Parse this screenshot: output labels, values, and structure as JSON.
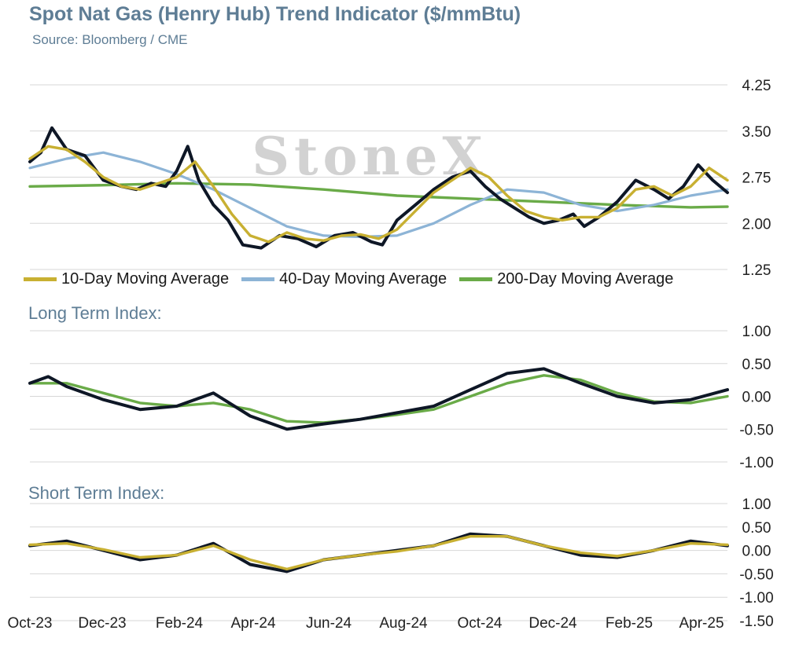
{
  "header": {
    "title": "Spot Nat Gas (Henry Hub) Trend Indicator ($/mmBtu)",
    "source": "Source: Bloomberg / CME",
    "watermark": "StoneX"
  },
  "panels": {
    "long_term_label": "Long Term Index:",
    "short_term_label": "Short Term Index:"
  },
  "legend": [
    {
      "label": "10-Day Moving Average",
      "color": "#c8b032"
    },
    {
      "label": "40-Day Moving Average",
      "color": "#8db4d6"
    },
    {
      "label": "200-Day Moving Average",
      "color": "#6aab48"
    }
  ],
  "colors": {
    "price": "#0e1726",
    "grid": "#d7d7d7",
    "ma10": "#c8b032",
    "ma40": "#8db4d6",
    "ma200": "#6aab48"
  },
  "chart_data": [
    {
      "type": "line",
      "title": "Spot Nat Gas (Henry Hub) Trend Indicator ($/mmBtu)",
      "x_tick_labels": [
        "Oct-23",
        "Dec-23",
        "Feb-24",
        "Apr-24",
        "Jun-24",
        "Aug-24",
        "Oct-24",
        "Dec-24",
        "Feb-25",
        "Apr-25"
      ],
      "y_ticks": [
        "4.25",
        "3.50",
        "2.75",
        "2.00",
        "1.25"
      ],
      "ylim": [
        1.25,
        4.25
      ],
      "x_range": [
        0,
        19
      ],
      "series": [
        {
          "key": "price",
          "values": [
            [
              0,
              3.0
            ],
            [
              0.3,
              3.15
            ],
            [
              0.6,
              3.55
            ],
            [
              1,
              3.2
            ],
            [
              1.5,
              3.1
            ],
            [
              2,
              2.7
            ],
            [
              2.5,
              2.6
            ],
            [
              2.9,
              2.55
            ],
            [
              3.3,
              2.65
            ],
            [
              3.7,
              2.6
            ],
            [
              4,
              2.85
            ],
            [
              4.3,
              3.25
            ],
            [
              4.6,
              2.7
            ],
            [
              5,
              2.3
            ],
            [
              5.4,
              2.05
            ],
            [
              5.8,
              1.65
            ],
            [
              6.3,
              1.6
            ],
            [
              6.8,
              1.8
            ],
            [
              7.3,
              1.75
            ],
            [
              7.8,
              1.62
            ],
            [
              8.3,
              1.8
            ],
            [
              8.8,
              1.85
            ],
            [
              9.3,
              1.7
            ],
            [
              9.6,
              1.65
            ],
            [
              10,
              2.05
            ],
            [
              10.5,
              2.3
            ],
            [
              11,
              2.55
            ],
            [
              11.5,
              2.75
            ],
            [
              12,
              2.85
            ],
            [
              12.4,
              2.6
            ],
            [
              12.8,
              2.4
            ],
            [
              13.2,
              2.25
            ],
            [
              13.6,
              2.1
            ],
            [
              14,
              2.0
            ],
            [
              14.4,
              2.05
            ],
            [
              14.8,
              2.15
            ],
            [
              15.1,
              1.95
            ],
            [
              15.5,
              2.1
            ],
            [
              16,
              2.35
            ],
            [
              16.5,
              2.7
            ],
            [
              17,
              2.55
            ],
            [
              17.4,
              2.4
            ],
            [
              17.8,
              2.6
            ],
            [
              18.2,
              2.95
            ],
            [
              18.6,
              2.7
            ],
            [
              19,
              2.5
            ]
          ]
        },
        {
          "key": "ma10",
          "values": [
            [
              0,
              3.05
            ],
            [
              0.5,
              3.25
            ],
            [
              1,
              3.2
            ],
            [
              1.5,
              3.0
            ],
            [
              2,
              2.75
            ],
            [
              2.5,
              2.6
            ],
            [
              3,
              2.55
            ],
            [
              3.5,
              2.65
            ],
            [
              4,
              2.75
            ],
            [
              4.5,
              3.0
            ],
            [
              5,
              2.6
            ],
            [
              5.5,
              2.15
            ],
            [
              6,
              1.8
            ],
            [
              6.5,
              1.7
            ],
            [
              7,
              1.85
            ],
            [
              7.5,
              1.75
            ],
            [
              8,
              1.72
            ],
            [
              8.5,
              1.8
            ],
            [
              9,
              1.82
            ],
            [
              9.5,
              1.75
            ],
            [
              10,
              1.9
            ],
            [
              10.5,
              2.2
            ],
            [
              11,
              2.5
            ],
            [
              11.5,
              2.7
            ],
            [
              12,
              2.9
            ],
            [
              12.5,
              2.75
            ],
            [
              13,
              2.45
            ],
            [
              13.5,
              2.2
            ],
            [
              14,
              2.1
            ],
            [
              14.5,
              2.05
            ],
            [
              15,
              2.1
            ],
            [
              15.5,
              2.1
            ],
            [
              16,
              2.25
            ],
            [
              16.5,
              2.55
            ],
            [
              17,
              2.6
            ],
            [
              17.5,
              2.45
            ],
            [
              18,
              2.6
            ],
            [
              18.5,
              2.9
            ],
            [
              19,
              2.7
            ]
          ]
        },
        {
          "key": "ma40",
          "values": [
            [
              0,
              2.9
            ],
            [
              1,
              3.05
            ],
            [
              2,
              3.15
            ],
            [
              3,
              3.0
            ],
            [
              4,
              2.8
            ],
            [
              5,
              2.55
            ],
            [
              6,
              2.25
            ],
            [
              7,
              1.95
            ],
            [
              8,
              1.8
            ],
            [
              9,
              1.78
            ],
            [
              10,
              1.8
            ],
            [
              11,
              2.0
            ],
            [
              12,
              2.3
            ],
            [
              13,
              2.55
            ],
            [
              14,
              2.5
            ],
            [
              15,
              2.3
            ],
            [
              16,
              2.2
            ],
            [
              17,
              2.3
            ],
            [
              18,
              2.45
            ],
            [
              19,
              2.55
            ]
          ]
        },
        {
          "key": "ma200",
          "values": [
            [
              0,
              2.6
            ],
            [
              2,
              2.62
            ],
            [
              4,
              2.65
            ],
            [
              6,
              2.63
            ],
            [
              8,
              2.55
            ],
            [
              10,
              2.45
            ],
            [
              12,
              2.4
            ],
            [
              14,
              2.35
            ],
            [
              16,
              2.3
            ],
            [
              17,
              2.28
            ],
            [
              18,
              2.26
            ],
            [
              19,
              2.27
            ]
          ]
        }
      ]
    },
    {
      "type": "line",
      "title": "Long Term Index:",
      "y_ticks": [
        "1.00",
        "0.50",
        "0.00",
        "-0.50",
        "-1.00"
      ],
      "ylim": [
        -1.0,
        1.0
      ],
      "x_range": [
        0,
        19
      ],
      "series": [
        {
          "key": "price",
          "values": [
            [
              0,
              0.2
            ],
            [
              0.5,
              0.3
            ],
            [
              1,
              0.15
            ],
            [
              2,
              -0.05
            ],
            [
              3,
              -0.2
            ],
            [
              4,
              -0.15
            ],
            [
              5,
              0.05
            ],
            [
              6,
              -0.3
            ],
            [
              7,
              -0.5
            ],
            [
              8,
              -0.42
            ],
            [
              9,
              -0.35
            ],
            [
              10,
              -0.25
            ],
            [
              11,
              -0.15
            ],
            [
              12,
              0.1
            ],
            [
              13,
              0.35
            ],
            [
              14,
              0.42
            ],
            [
              15,
              0.2
            ],
            [
              16,
              0.0
            ],
            [
              17,
              -0.1
            ],
            [
              18,
              -0.05
            ],
            [
              19,
              0.1
            ]
          ]
        },
        {
          "key": "ma200",
          "values": [
            [
              0,
              0.2
            ],
            [
              1,
              0.2
            ],
            [
              2,
              0.05
            ],
            [
              3,
              -0.1
            ],
            [
              4,
              -0.15
            ],
            [
              5,
              -0.1
            ],
            [
              6,
              -0.2
            ],
            [
              7,
              -0.38
            ],
            [
              8,
              -0.4
            ],
            [
              9,
              -0.35
            ],
            [
              10,
              -0.28
            ],
            [
              11,
              -0.2
            ],
            [
              12,
              0.0
            ],
            [
              13,
              0.2
            ],
            [
              14,
              0.32
            ],
            [
              15,
              0.25
            ],
            [
              16,
              0.05
            ],
            [
              17,
              -0.08
            ],
            [
              18,
              -0.1
            ],
            [
              19,
              0.0
            ]
          ]
        }
      ]
    },
    {
      "type": "line",
      "title": "Short Term Index:",
      "y_ticks": [
        "1.00",
        "0.50",
        "0.00",
        "-0.50",
        "-1.00",
        "-1.50"
      ],
      "ylim": [
        -1.5,
        1.0
      ],
      "x_range": [
        0,
        19
      ],
      "series": [
        {
          "key": "price",
          "values": [
            [
              0,
              0.1
            ],
            [
              1,
              0.2
            ],
            [
              2,
              0.0
            ],
            [
              3,
              -0.2
            ],
            [
              4,
              -0.1
            ],
            [
              5,
              0.15
            ],
            [
              6,
              -0.3
            ],
            [
              7,
              -0.45
            ],
            [
              8,
              -0.2
            ],
            [
              9,
              -0.1
            ],
            [
              10,
              0.0
            ],
            [
              11,
              0.1
            ],
            [
              12,
              0.35
            ],
            [
              13,
              0.3
            ],
            [
              14,
              0.1
            ],
            [
              15,
              -0.1
            ],
            [
              16,
              -0.15
            ],
            [
              17,
              0.0
            ],
            [
              18,
              0.2
            ],
            [
              19,
              0.1
            ]
          ]
        },
        {
          "key": "ma10",
          "values": [
            [
              0,
              0.12
            ],
            [
              1,
              0.15
            ],
            [
              2,
              0.02
            ],
            [
              3,
              -0.15
            ],
            [
              4,
              -0.1
            ],
            [
              5,
              0.1
            ],
            [
              6,
              -0.2
            ],
            [
              7,
              -0.4
            ],
            [
              8,
              -0.2
            ],
            [
              9,
              -0.1
            ],
            [
              10,
              -0.02
            ],
            [
              11,
              0.1
            ],
            [
              12,
              0.3
            ],
            [
              13,
              0.3
            ],
            [
              14,
              0.1
            ],
            [
              15,
              -0.05
            ],
            [
              16,
              -0.12
            ],
            [
              17,
              0.0
            ],
            [
              18,
              0.15
            ],
            [
              19,
              0.12
            ]
          ]
        }
      ]
    }
  ]
}
